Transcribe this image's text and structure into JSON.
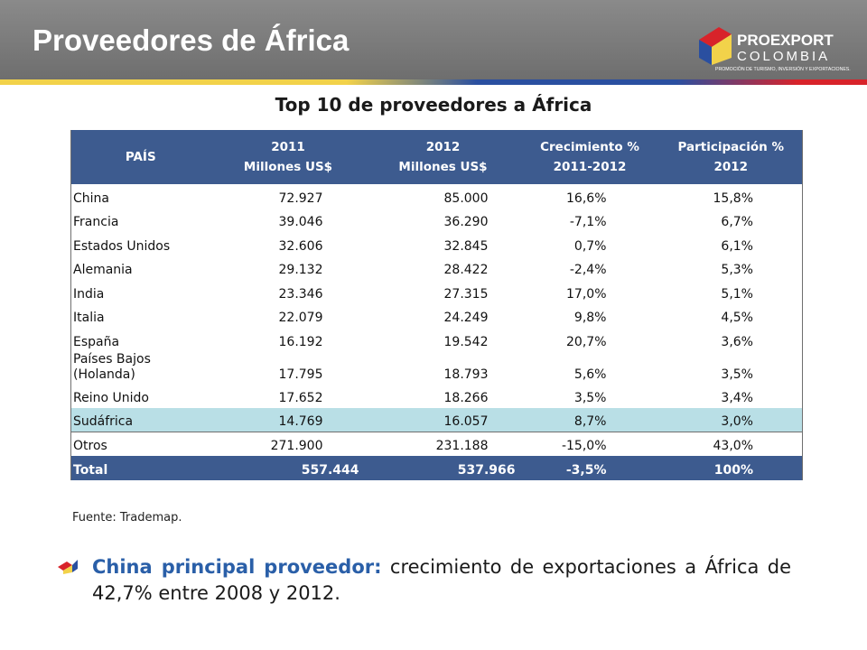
{
  "header": {
    "title": "Proveedores de África"
  },
  "logo": {
    "name": "PROEXPORT",
    "country": "COLOMBIA",
    "tagline": "PROMOCIÓN DE TURISMO, INVERSIÓN Y EXPORTACIONES."
  },
  "table": {
    "title": "Top 10 de proveedores a África",
    "columns": [
      [
        "PAÍS"
      ],
      [
        "2011",
        "Millones US$"
      ],
      [
        "2012",
        "Millones US$"
      ],
      [
        "Crecimiento %",
        "2011-2012"
      ],
      [
        "Participación %",
        "2012"
      ]
    ],
    "rows": [
      [
        "China",
        "72.927",
        "85.000",
        "16,6%",
        "15,8%"
      ],
      [
        "Francia",
        "39.046",
        "36.290",
        "-7,1%",
        "6,7%"
      ],
      [
        "Estados Unidos",
        "32.606",
        "32.845",
        "0,7%",
        "6,1%"
      ],
      [
        "Alemania",
        "29.132",
        "28.422",
        "-2,4%",
        "5,3%"
      ],
      [
        "India",
        "23.346",
        "27.315",
        "17,0%",
        "5,1%"
      ],
      [
        "Italia",
        "22.079",
        "24.249",
        "9,8%",
        "4,5%"
      ],
      [
        "España",
        "16.192",
        "19.542",
        "20,7%",
        "3,6%"
      ],
      [
        "Países Bajos (Holanda)",
        "17.795",
        "18.793",
        "5,6%",
        "3,5%"
      ],
      [
        "Reino Unido",
        "17.652",
        "18.266",
        "3,5%",
        "3,4%"
      ],
      [
        "Sudáfrica",
        "14.769",
        "16.057",
        "8,7%",
        "3,0%"
      ],
      [
        "Otros",
        "271.900",
        "231.188",
        "-15,0%",
        "43,0%"
      ],
      [
        "Total",
        "557.444",
        "537.966",
        "-3,5%",
        "100%"
      ]
    ]
  },
  "source": "Fuente: Trademap.",
  "bullet": {
    "lead": "China principal proveedor:",
    "text": " crecimiento de exportaciones a África de 42,7% entre 2008 y 2012."
  }
}
